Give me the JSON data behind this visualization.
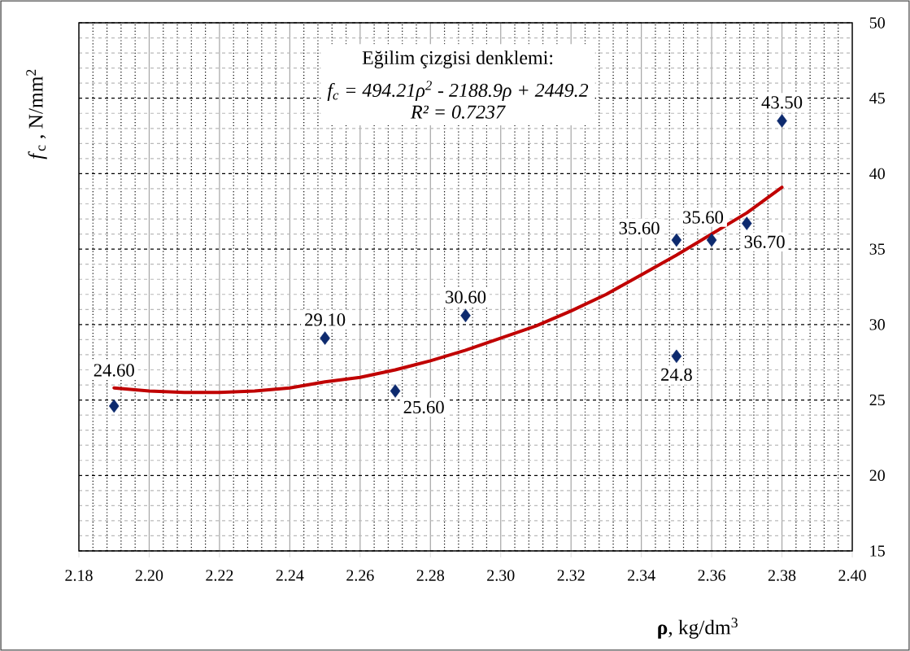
{
  "chart_data": {
    "type": "scatter",
    "xlabel": "**ρ**,  kg/dm$^{3}$",
    "ylabel": "*f*$_{c}$ ,  N/mm$^{2}$",
    "xlim": [
      2.18,
      2.4
    ],
    "xticks": [
      {
        "value": 2.18,
        "label": "2.18"
      },
      {
        "value": 2.2,
        "label": "2.20"
      },
      {
        "value": 2.22,
        "label": "2.22"
      },
      {
        "value": 2.24,
        "label": "2.24"
      },
      {
        "value": 2.26,
        "label": "2.26"
      },
      {
        "value": 2.28,
        "label": "2.28"
      },
      {
        "value": 2.3,
        "label": "2.30"
      },
      {
        "value": 2.32,
        "label": "2.32"
      },
      {
        "value": 2.34,
        "label": "2.34"
      },
      {
        "value": 2.36,
        "label": "2.36"
      },
      {
        "value": 2.38,
        "label": "2.38"
      },
      {
        "value": 2.4,
        "label": "2.40"
      }
    ],
    "ylim": [
      15,
      50
    ],
    "yticks": [
      15,
      20,
      25,
      30,
      35,
      40,
      45,
      50
    ],
    "grid": true,
    "series": [
      {
        "type": "scatter",
        "color": "#0d2a6e",
        "marker": "diamond",
        "x": [
          2.19,
          2.25,
          2.27,
          2.29,
          2.35,
          2.35,
          2.36,
          2.37,
          2.38
        ],
        "values": [
          24.6,
          29.1,
          25.6,
          30.6,
          35.6,
          27.9,
          35.6,
          36.7,
          43.5
        ],
        "value_labels": [
          "24.60",
          "29.10",
          "25.60",
          "30.60",
          "35.60",
          null,
          "35.60",
          "36.70",
          "43.50"
        ]
      },
      {
        "type": "line",
        "color": "#c00000",
        "marker": "none",
        "x": [
          2.19,
          2.2,
          2.21,
          2.22,
          2.23,
          2.24,
          2.25,
          2.26,
          2.27,
          2.28,
          2.29,
          2.3,
          2.31,
          2.32,
          2.33,
          2.34,
          2.35,
          2.36,
          2.37,
          2.38
        ],
        "values": [
          25.8,
          25.6,
          25.5,
          25.5,
          25.6,
          25.8,
          26.2,
          26.5,
          27.0,
          27.6,
          28.3,
          29.1,
          29.9,
          30.9,
          32.0,
          33.3,
          34.6,
          36.0,
          37.4,
          39.1
        ]
      }
    ],
    "annotations": [
      "Eğilim çizgisi denklemi:",
      "f$_{c}$ = 494.21ρ$^{2}$ - 2188.9ρ + 2449.2",
      "R² = 0.7237",
      {
        "text": "24.8",
        "x": 2.35,
        "y": 27.9
      }
    ]
  }
}
